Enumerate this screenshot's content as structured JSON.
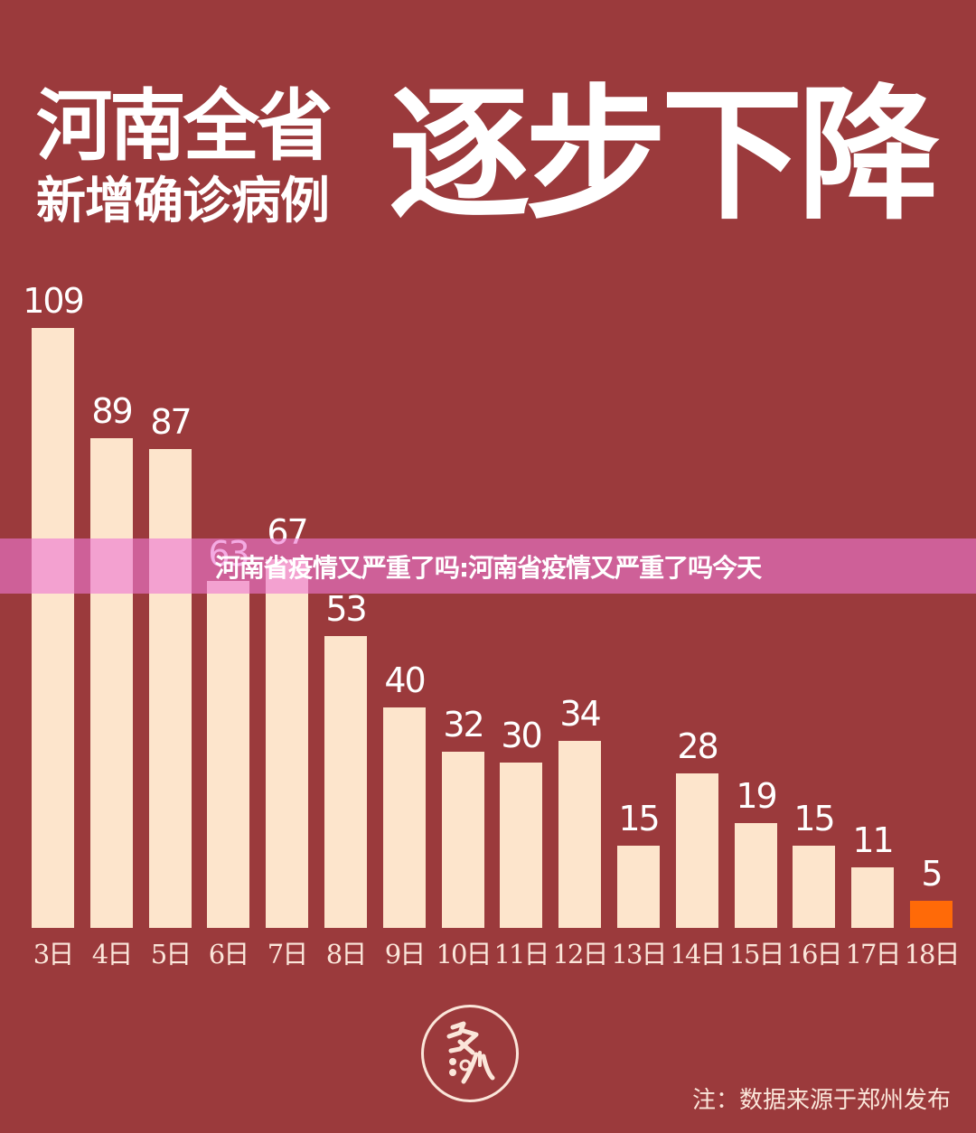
{
  "header": {
    "title_line1": "河南全省",
    "title_line2": "新增确诊病例",
    "title_emphasis": "逐步下降"
  },
  "overlay": {
    "banner_text": "河南省疫情又严重了吗:河南省疫情又严重了吗今天"
  },
  "footer": {
    "logo_text": "多吶",
    "note": "注：数据来源于郑州发布"
  },
  "colors": {
    "background": "#9B3A3C",
    "bar": "#FDE5CC",
    "highlight_bar": "#FF6A08",
    "banner": "#E878CC",
    "text": "#FFFFFF"
  },
  "chart_data": {
    "type": "bar",
    "title": "河南全省新增确诊病例逐步下降",
    "xlabel": "",
    "ylabel": "",
    "categories": [
      "3日",
      "4日",
      "5日",
      "6日",
      "7日",
      "8日",
      "9日",
      "10日",
      "11日",
      "12日",
      "13日",
      "14日",
      "15日",
      "16日",
      "17日",
      "18日"
    ],
    "values": [
      109,
      89,
      87,
      63,
      67,
      53,
      40,
      32,
      30,
      34,
      15,
      28,
      19,
      15,
      11,
      5
    ],
    "highlight_index": 15,
    "ylim": [
      0,
      109
    ],
    "grid": false,
    "legend": "none",
    "data_labels": true,
    "note": "注：数据来源于郑州发布"
  }
}
